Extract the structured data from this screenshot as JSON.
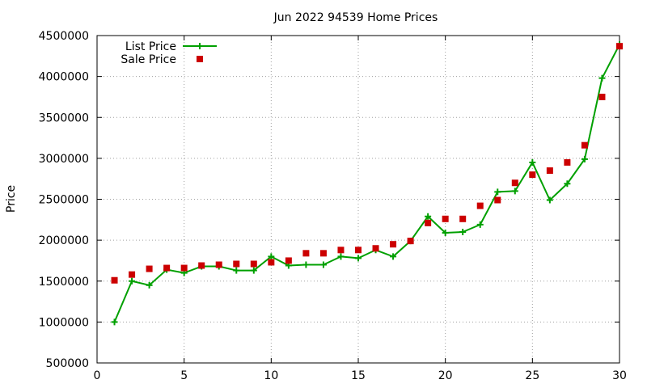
{
  "chart_data": {
    "type": "line",
    "title": "Jun 2022 94539 Home Prices",
    "xlabel": "",
    "ylabel": "Price",
    "xlim": [
      0,
      30
    ],
    "ylim": [
      500000,
      4500000
    ],
    "xticks": [
      0,
      5,
      10,
      15,
      20,
      25,
      30
    ],
    "yticks": [
      500000,
      1000000,
      1500000,
      2000000,
      2500000,
      3000000,
      3500000,
      4000000,
      4500000
    ],
    "xtick_labels": [
      "0",
      "5",
      "10",
      "15",
      "20",
      "25",
      "30"
    ],
    "ytick_labels": [
      "500000",
      "1000000",
      "1500000",
      "2000000",
      "2500000",
      "3000000",
      "3500000",
      "4000000",
      "4500000"
    ],
    "grid": true,
    "legend_position": "top-left",
    "x": [
      1,
      2,
      3,
      4,
      5,
      6,
      7,
      8,
      9,
      10,
      11,
      12,
      13,
      14,
      15,
      16,
      17,
      18,
      19,
      20,
      21,
      22,
      23,
      24,
      25,
      26,
      27,
      28,
      29,
      30
    ],
    "series": [
      {
        "name": "List Price",
        "style": "line-plus",
        "color": "#00a000",
        "values": [
          1000000,
          1500000,
          1450000,
          1640000,
          1600000,
          1680000,
          1680000,
          1630000,
          1630000,
          1800000,
          1690000,
          1700000,
          1700000,
          1800000,
          1780000,
          1880000,
          1800000,
          1990000,
          2290000,
          2090000,
          2100000,
          2190000,
          2590000,
          2600000,
          2950000,
          2490000,
          2690000,
          2990000,
          3980000,
          4390000
        ]
      },
      {
        "name": "Sale Price",
        "style": "square-marker",
        "color": "#cc0000",
        "values": [
          1510000,
          1580000,
          1650000,
          1660000,
          1660000,
          1690000,
          1700000,
          1710000,
          1710000,
          1730000,
          1750000,
          1840000,
          1840000,
          1880000,
          1880000,
          1900000,
          1950000,
          1990000,
          2210000,
          2260000,
          2260000,
          2420000,
          2490000,
          2700000,
          2800000,
          2850000,
          2950000,
          3160000,
          3750000,
          4370000
        ]
      }
    ]
  }
}
